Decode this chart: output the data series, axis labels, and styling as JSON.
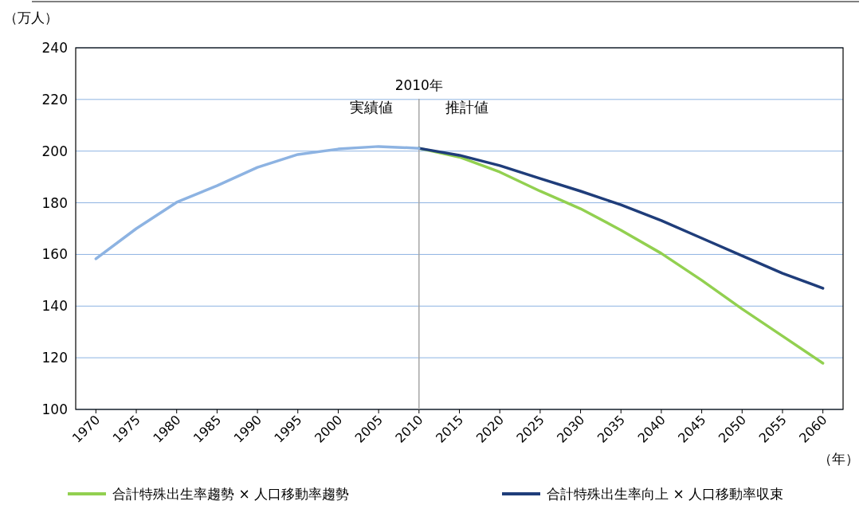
{
  "chart_data": {
    "type": "line",
    "ylabel": "（万人）",
    "xlabel": "（年）",
    "categories": [
      "1970",
      "1975",
      "1980",
      "1985",
      "1990",
      "1995",
      "2000",
      "2005",
      "2010",
      "2015",
      "2020",
      "2025",
      "2030",
      "2035",
      "2040",
      "2045",
      "2050",
      "2055",
      "2060"
    ],
    "series": [
      {
        "name": "合計特殊出生率趨勢 × 人口移動率趨勢",
        "color": "#92d050",
        "values": [
          null,
          null,
          null,
          null,
          null,
          null,
          null,
          null,
          201.1,
          197.7,
          191.9,
          184.5,
          177.7,
          169.4,
          160.4,
          150.0,
          138.9,
          128.4,
          117.9
        ]
      },
      {
        "name": "合計特殊出生率向上 × 人口移動率収束",
        "color": "#1f3d7a",
        "values": [
          null,
          null,
          null,
          null,
          null,
          null,
          null,
          null,
          201.1,
          198.4,
          194.4,
          189.4,
          184.5,
          179.2,
          173.1,
          166.3,
          159.5,
          152.7,
          146.9
        ]
      },
      {
        "color": "#8db3e2",
        "values": [
          158.3,
          170.0,
          180.2,
          186.6,
          193.7,
          198.7,
          200.8,
          201.8,
          201.1,
          null,
          null,
          null,
          null,
          null,
          null,
          null,
          null,
          null,
          null
        ]
      }
    ],
    "ylim": [
      100,
      240
    ],
    "yticks": [
      100,
      120,
      140,
      160,
      180,
      200,
      220,
      240
    ],
    "grid": "y",
    "legend": "bottom",
    "ref_lines": [
      {
        "axis": "x",
        "value": "2010",
        "label": "2010年",
        "color": "#a6a6a6"
      }
    ],
    "annotations": [
      "実績値",
      "推計値"
    ]
  }
}
